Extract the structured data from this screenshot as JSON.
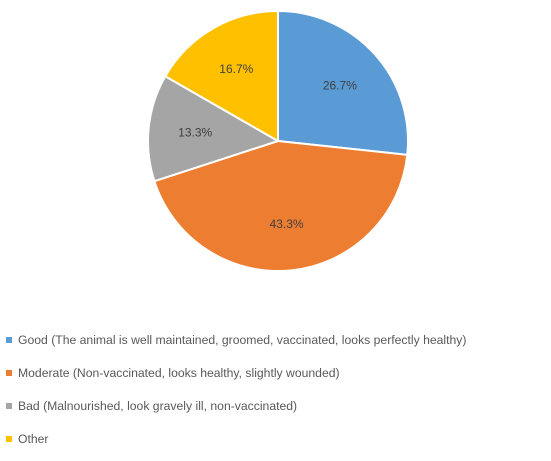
{
  "chart_data": {
    "type": "pie",
    "title": "",
    "slices": [
      {
        "label": "Good (The animal is well maintained, groomed, vaccinated, looks perfectly healthy)",
        "value": 26.7,
        "display": "26.7%",
        "color": "#5B9BD5"
      },
      {
        "label": "Moderate (Non-vaccinated, looks healthy, slightly wounded)",
        "value": 43.3,
        "display": "43.3%",
        "color": "#ED7D31"
      },
      {
        "label": "Bad (Malnourished, look gravely ill, non-vaccinated)",
        "value": 13.3,
        "display": "13.3%",
        "color": "#A5A5A5"
      },
      {
        "label": "Other",
        "value": 16.7,
        "display": "16.7%",
        "color": "#FFC000"
      }
    ],
    "legend_position": "bottom-left"
  }
}
